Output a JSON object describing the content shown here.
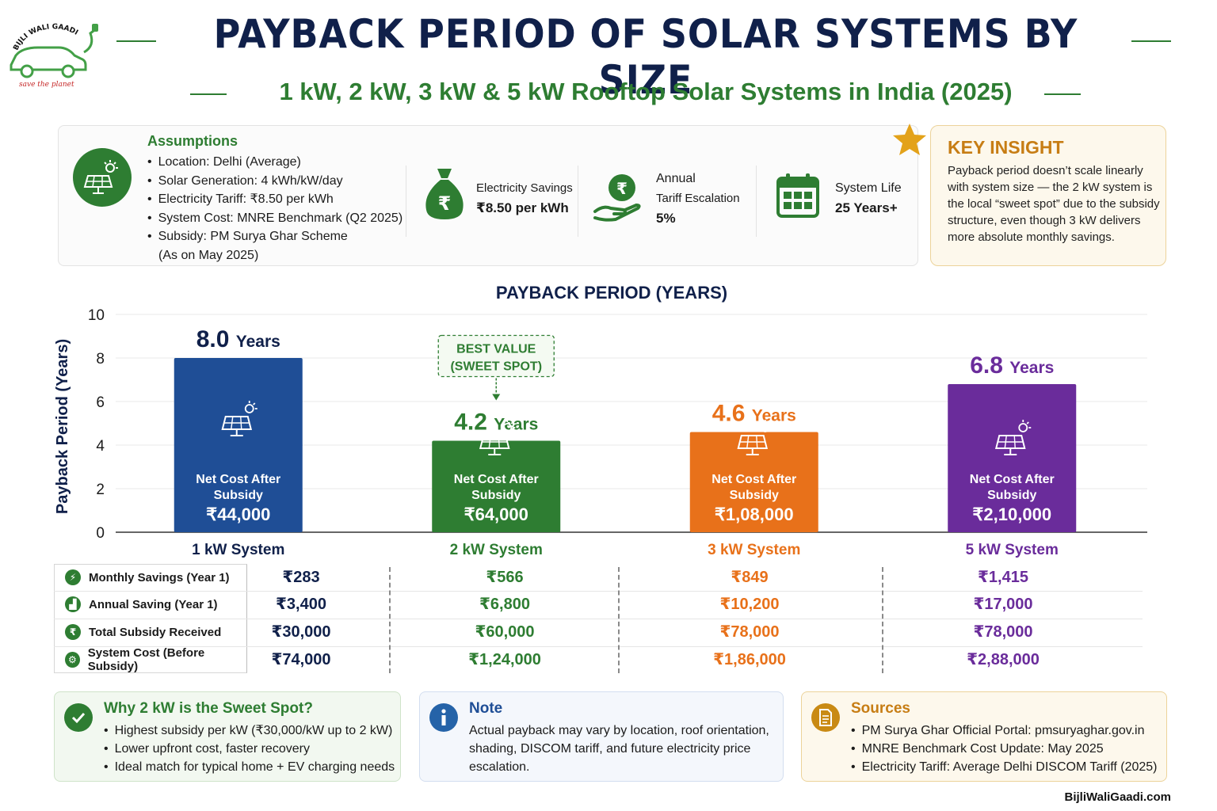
{
  "brand": {
    "logo_text": "BIJLI WALI GAADI",
    "logo_tagline": "save the planet",
    "website": "BijliWaliGaadi.com"
  },
  "header": {
    "title": "PAYBACK PERIOD OF SOLAR SYSTEMS BY SIZE",
    "subtitle": "1 kW, 2 kW, 3 kW & 5 kW Rooftop Solar Systems in India (2025)"
  },
  "assumptions": {
    "title": "Assumptions",
    "items": [
      "Location: Delhi (Average)",
      "Solar Generation: 4 kWh/kW/day",
      "Electricity Tariff: ₹8.50 per kWh",
      "System Cost: MNRE Benchmark (Q2 2025)",
      "Subsidy: PM Surya Ghar Scheme"
    ],
    "item_continuation": "(As on May 2025)"
  },
  "stats": [
    {
      "label": "Electricity Savings",
      "value": "₹8.50 per kWh",
      "icon": "money-bag-icon"
    },
    {
      "label_line1": "Annual",
      "label_line2": "Tariff Escalation",
      "value": "5%",
      "icon": "rupee-hand-icon"
    },
    {
      "label": "System Life",
      "value": "25 Years+",
      "icon": "calendar-icon"
    }
  ],
  "key_insight": {
    "title": "KEY INSIGHT",
    "text": "Payback period doesn’t scale linearly with system size — the 2 kW system is the local “sweet spot” due to the subsidy structure, even though 3 kW delivers more absolute monthly savings."
  },
  "chart_data": {
    "type": "bar",
    "title": "PAYBACK PERIOD (YEARS)",
    "ylabel": "Payback Period (Years)",
    "xlabel": "",
    "ylim": [
      0,
      10
    ],
    "yticks": [
      0,
      2,
      4,
      6,
      8,
      10
    ],
    "grid": true,
    "categories": [
      "1 kW System",
      "2 kW System",
      "3 kW System",
      "5 kW System"
    ],
    "values": [
      8.0,
      4.2,
      4.6,
      6.8
    ],
    "value_labels": [
      "8.0",
      "4.2",
      "4.6",
      "6.8"
    ],
    "value_unit": "Years",
    "bar_inner_label_line1": "Net Cost After",
    "bar_inner_label_line2": "Subsidy",
    "net_costs": [
      "₹44,000",
      "₹64,000",
      "₹1,08,000",
      "₹2,10,000"
    ],
    "colors": [
      "#1f4e96",
      "#2e7d32",
      "#e8711a",
      "#6a2c9b"
    ],
    "label_colors": [
      "#10204a",
      "#2e7d32",
      "#e8711a",
      "#6a2c9b"
    ],
    "callout": {
      "category": "2 kW System",
      "line1": "BEST VALUE",
      "line2": "(SWEET SPOT)"
    }
  },
  "table": {
    "rows": [
      {
        "label": "Monthly Savings (Year 1)",
        "icon": "lightning-icon",
        "values": [
          "₹283",
          "₹566",
          "₹849",
          "₹1,415"
        ]
      },
      {
        "label": "Annual Saving (Year 1)",
        "icon": "bar-growth-icon",
        "values": [
          "₹3,400",
          "₹6,800",
          "₹10,200",
          "₹17,000"
        ]
      },
      {
        "label": "Total Subsidy Received",
        "icon": "rupee-icon",
        "values": [
          "₹30,000",
          "₹60,000",
          "₹78,000",
          "₹78,000"
        ]
      },
      {
        "label": "System Cost (Before Subsidy)",
        "icon": "gear-icon",
        "values": [
          "₹74,000",
          "₹1,24,000",
          "₹1,86,000",
          "₹2,88,000"
        ]
      }
    ]
  },
  "footer": {
    "sweet_spot": {
      "title": "Why 2 kW is the Sweet Spot?",
      "items": [
        "Highest subsidy per kW (₹30,000/kW up to 2 kW)",
        "Lower upfront cost, faster recovery",
        "Ideal match for typical home + EV charging needs"
      ]
    },
    "note": {
      "title": "Note",
      "text": "Actual payback may vary by location, roof orientation, shading, DISCOM tariff, and future electricity price escalation."
    },
    "sources": {
      "title": "Sources",
      "items": [
        "PM Surya Ghar Official Portal: pmsuryaghar.gov.in",
        "MNRE Benchmark Cost Update: May 2025",
        "Electricity Tariff: Average Delhi DISCOM Tariff (2025)"
      ]
    }
  }
}
